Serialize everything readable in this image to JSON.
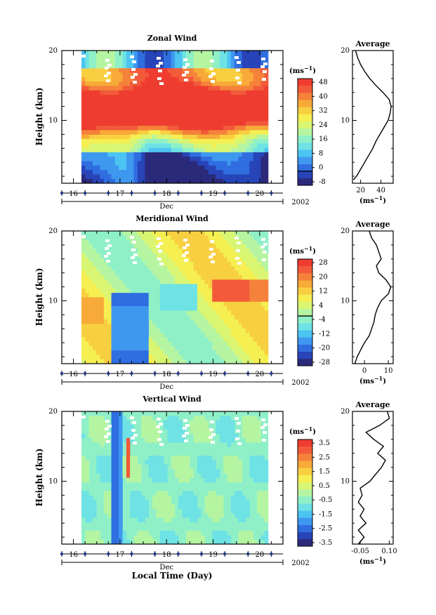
{
  "figure": {
    "x_label": "Local Time (Day)",
    "month_label": "Dec",
    "year_label": "2002",
    "unit_label": "(ms",
    "unit_exp": "−1",
    "y_label": "Height (km)",
    "avg_title": "Average"
  },
  "chart_data": [
    {
      "type": "heatmap",
      "title": "Zonal Wind",
      "xlabel": "Local Time (Day)",
      "ylabel": "Height (km)",
      "xlim": [
        15.75,
        20.5
      ],
      "ylim": [
        1,
        20
      ],
      "x_ticks": [
        "16",
        "17",
        "18",
        "19",
        "20"
      ],
      "y_ticks": [
        "10",
        "20"
      ],
      "colorbar": {
        "label": "(ms-1)",
        "levels": [
          -8,
          -4,
          0,
          4,
          8,
          12,
          16,
          20,
          24,
          28,
          32,
          36,
          40,
          44,
          48
        ],
        "tick_labels": [
          "-8",
          "0",
          "8",
          "16",
          "24",
          "32",
          "40",
          "48"
        ],
        "zero_line": true
      },
      "profile": {
        "title": "Average",
        "xlabel": "(ms-1)",
        "x_ticks": [
          "20",
          "40"
        ],
        "xlim": [
          12,
          52
        ],
        "heights": [
          1.5,
          2,
          3,
          4,
          5,
          6,
          7,
          8,
          9,
          10,
          11,
          12,
          13,
          14,
          15,
          16,
          17,
          18,
          19,
          20
        ],
        "values": [
          13,
          16,
          20,
          24,
          28,
          32,
          35,
          39,
          43,
          47,
          49,
          50,
          48,
          42,
          35,
          29,
          24,
          20,
          17,
          15
        ]
      }
    },
    {
      "type": "heatmap",
      "title": "Meridional Wind",
      "xlabel": "Local Time (Day)",
      "ylabel": "Height (km)",
      "xlim": [
        15.75,
        20.5
      ],
      "ylim": [
        1,
        20
      ],
      "x_ticks": [
        "16",
        "17",
        "18",
        "19",
        "20"
      ],
      "y_ticks": [
        "10",
        "20"
      ],
      "colorbar": {
        "label": "(ms-1)",
        "levels": [
          -28,
          -24,
          -20,
          -16,
          -12,
          -8,
          -4,
          0,
          4,
          8,
          12,
          16,
          20,
          24,
          28
        ],
        "tick_labels": [
          "-28",
          "-20",
          "-12",
          "-4",
          "4",
          "12",
          "20",
          "28"
        ],
        "zero_line": true
      },
      "profile": {
        "title": "Average",
        "xlabel": "(ms-1)",
        "x_ticks": [
          "0",
          "10"
        ],
        "xlim": [
          -5,
          12
        ],
        "heights": [
          1,
          2,
          3,
          4,
          5,
          6,
          7,
          8,
          9,
          10,
          11,
          12,
          13,
          14,
          15,
          16,
          17,
          18,
          19,
          20
        ],
        "values": [
          -4,
          -3,
          -1.5,
          0,
          2,
          3,
          4,
          4.5,
          5.5,
          7,
          10,
          11,
          9,
          6,
          5,
          7,
          6,
          5,
          3,
          2
        ]
      }
    },
    {
      "type": "heatmap",
      "title": "Vertical Wind",
      "xlabel": "Local Time (Day)",
      "ylabel": "Height (km)",
      "xlim": [
        15.75,
        20.5
      ],
      "ylim": [
        1,
        20
      ],
      "x_ticks": [
        "16",
        "17",
        "18",
        "19",
        "20"
      ],
      "y_ticks": [
        "10",
        "20"
      ],
      "colorbar": {
        "label": "(ms-1)",
        "levels": [
          -3.5,
          -3,
          -2.5,
          -2,
          -1.5,
          -1,
          -0.5,
          0,
          0.5,
          1,
          1.5,
          2,
          2.5,
          3,
          3.5
        ],
        "tick_labels": [
          "-3.5",
          "-2.5",
          "-1.5",
          "-0.5",
          "0.5",
          "1.5",
          "2.5",
          "3.5"
        ],
        "zero_line": false
      },
      "profile": {
        "title": "Average",
        "xlabel": "(ms-1)",
        "x_ticks": [
          "-0.05",
          "0.10"
        ],
        "xlim": [
          -0.09,
          0.12
        ],
        "heights": [
          1,
          2,
          3,
          4,
          5,
          6,
          7,
          8,
          9,
          10,
          11,
          12,
          13,
          14,
          15,
          16,
          17,
          18,
          19,
          20
        ],
        "values": [
          -0.06,
          -0.03,
          -0.06,
          -0.02,
          -0.05,
          -0.03,
          -0.06,
          -0.04,
          -0.05,
          0.0,
          0.03,
          0.06,
          0.08,
          0.04,
          0.07,
          0.02,
          -0.02,
          0.05,
          0.1,
          0.09
        ]
      }
    }
  ],
  "palette": [
    "#2b2a7a",
    "#2744b8",
    "#2f6ee0",
    "#3f98f0",
    "#4cc4f2",
    "#6ee2e4",
    "#8ff0c8",
    "#b5f5a2",
    "#d9f572",
    "#f5ef52",
    "#f8cf40",
    "#f7aa38",
    "#f5823a",
    "#f25a3a",
    "#ee3d30"
  ]
}
